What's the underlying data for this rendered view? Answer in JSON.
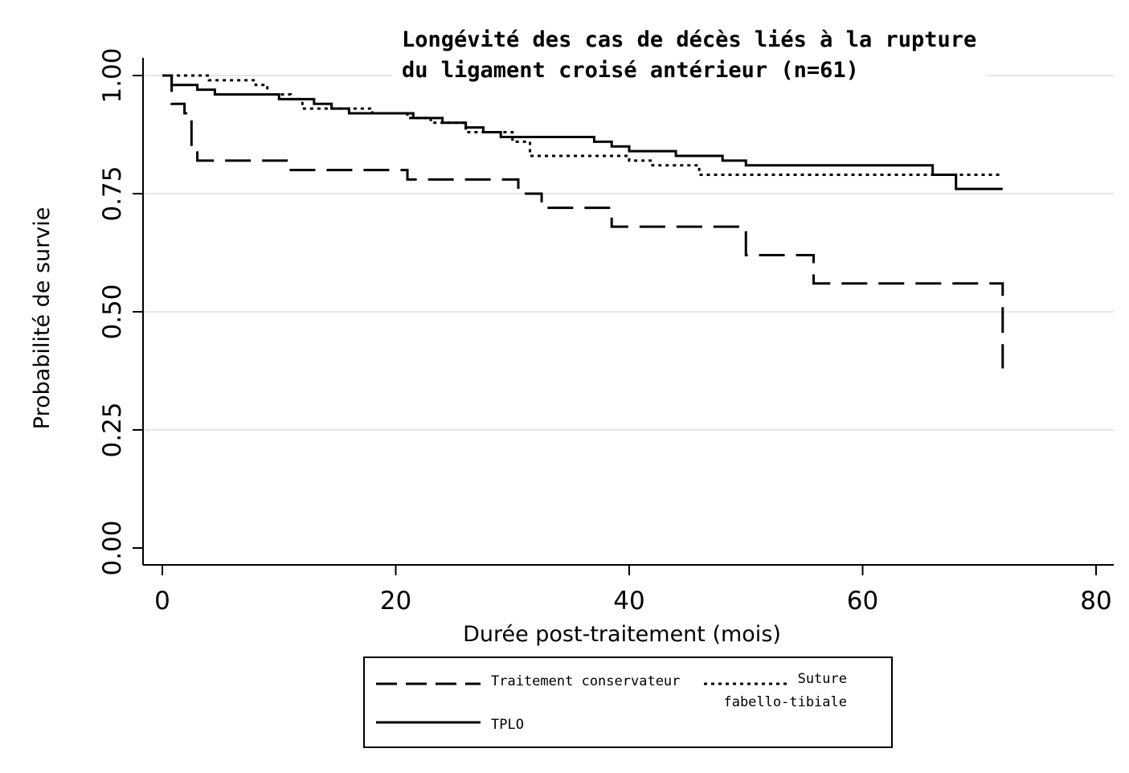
{
  "chart_data": {
    "type": "line",
    "title_lines": [
      "Longévité des cas de décès liés à la rupture",
      "du ligament croisé antérieur (n=61)"
    ],
    "xlabel": "Durée post-traitement (mois)",
    "ylabel": "Probabilité de survie",
    "xlim": [
      0,
      80
    ],
    "ylim": [
      0,
      1
    ],
    "x_ticks": [
      0,
      20,
      40,
      60,
      80
    ],
    "x_tick_labels": [
      "0",
      "20",
      "40",
      "60",
      "80"
    ],
    "y_ticks": [
      0,
      0.25,
      0.5,
      0.75,
      1
    ],
    "y_tick_labels": [
      "0.00",
      "0.25",
      "0.50",
      "0.75",
      "1.00"
    ],
    "grid": "horizontal",
    "step": true,
    "legend_position": "bottom",
    "series": [
      {
        "name": "Traitement conservateur",
        "style": "dashed",
        "points": [
          [
            0,
            1.0
          ],
          [
            0.8,
            0.94
          ],
          [
            1.9,
            0.92
          ],
          [
            2.5,
            0.84
          ],
          [
            3,
            0.82
          ],
          [
            11,
            0.8
          ],
          [
            21,
            0.78
          ],
          [
            30.5,
            0.75
          ],
          [
            32.5,
            0.72
          ],
          [
            38.5,
            0.68
          ],
          [
            50,
            0.62
          ],
          [
            55.8,
            0.56
          ],
          [
            72,
            0.56
          ],
          [
            72,
            0.38
          ]
        ]
      },
      {
        "name": "Suture fabello-tibiale",
        "style": "dotted",
        "points": [
          [
            0,
            1.0
          ],
          [
            4,
            0.99
          ],
          [
            8,
            0.98
          ],
          [
            9,
            0.96
          ],
          [
            11,
            0.95
          ],
          [
            12,
            0.93
          ],
          [
            18,
            0.92
          ],
          [
            21,
            0.91
          ],
          [
            23,
            0.9
          ],
          [
            26,
            0.88
          ],
          [
            30,
            0.86
          ],
          [
            31.5,
            0.83
          ],
          [
            40,
            0.82
          ],
          [
            42,
            0.81
          ],
          [
            46,
            0.79
          ],
          [
            72,
            0.79
          ]
        ]
      },
      {
        "name": "TPLO",
        "style": "solid",
        "points": [
          [
            0,
            1.0
          ],
          [
            0.8,
            0.98
          ],
          [
            3,
            0.97
          ],
          [
            4.5,
            0.96
          ],
          [
            10,
            0.95
          ],
          [
            13,
            0.94
          ],
          [
            14.5,
            0.93
          ],
          [
            16,
            0.92
          ],
          [
            21.5,
            0.91
          ],
          [
            24,
            0.9
          ],
          [
            26,
            0.89
          ],
          [
            27.5,
            0.88
          ],
          [
            29,
            0.87
          ],
          [
            37,
            0.86
          ],
          [
            38.5,
            0.85
          ],
          [
            40,
            0.84
          ],
          [
            44,
            0.83
          ],
          [
            48,
            0.82
          ],
          [
            50,
            0.81
          ],
          [
            66,
            0.79
          ],
          [
            68,
            0.76
          ],
          [
            72,
            0.76
          ]
        ]
      }
    ],
    "legend": {
      "entries": [
        {
          "label": "Traitement conservateur",
          "style": "dashed"
        },
        {
          "label_lines": [
            "Suture",
            "fabello-tibiale"
          ],
          "style": "dotted"
        },
        {
          "label": "TPLO",
          "style": "solid"
        }
      ]
    }
  }
}
